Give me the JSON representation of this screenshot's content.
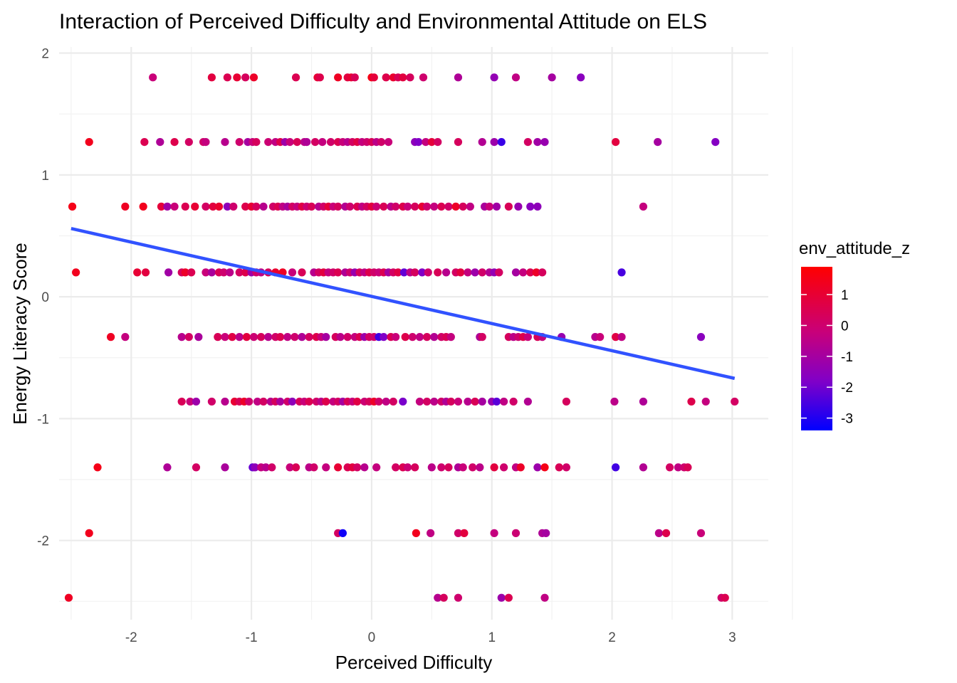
{
  "chart_data": {
    "type": "scatter",
    "title": "Interaction of Perceived Difficulty and Environmental Attitude on ELS",
    "xlabel": "Perceived Difficulty",
    "ylabel": "Energy Literacy Score",
    "xlim": [
      -2.6,
      3.3
    ],
    "ylim": [
      -2.65,
      2.05
    ],
    "x_ticks": [
      -2,
      -1,
      0,
      1,
      2,
      3
    ],
    "x_tick_labels": [
      "-2",
      "-1",
      "0",
      "1",
      "2",
      "3"
    ],
    "y_ticks": [
      -2,
      -1,
      0,
      1,
      2
    ],
    "y_tick_labels": [
      "-2",
      "-1",
      "0",
      "1",
      "2"
    ],
    "grid": true,
    "legend": {
      "title": "env_attitude_z",
      "placement": "right",
      "range": [
        -3.4,
        1.9
      ],
      "ticks": [
        1,
        0,
        -1,
        -2,
        -3
      ],
      "tick_labels": [
        "1",
        "0",
        "-1",
        "-2",
        "-3"
      ],
      "color_low": "#0000FF",
      "color_high": "#FF0000"
    },
    "trend_line": {
      "x": [
        -2.5,
        3.02
      ],
      "y": [
        0.56,
        -0.67
      ],
      "color": "#3152FF"
    },
    "rows": [
      {
        "y": 1.8,
        "x": [
          -1.82,
          -1.33,
          -1.2,
          -1.12,
          -1.05,
          -0.98,
          -0.63,
          -0.45,
          -0.43,
          -0.28,
          -0.2,
          -0.17,
          -0.14,
          0.0,
          0.02,
          0.12,
          0.18,
          0.22,
          0.26,
          0.32,
          0.43,
          0.72,
          1.02,
          1.2,
          1.5,
          1.74
        ],
        "c": [
          -0.2,
          0.8,
          0.5,
          1.0,
          0.3,
          1.2,
          0.5,
          1.0,
          0.6,
          1.3,
          0.8,
          1.0,
          0.4,
          1.5,
          0.9,
          0.6,
          1.1,
          0.4,
          0.8,
          0.3,
          0.0,
          -0.8,
          -1.4,
          -0.4,
          -1.0,
          -1.6
        ]
      },
      {
        "y": 1.27,
        "x": [
          -2.35,
          -1.89,
          -1.76,
          -1.64,
          -1.52,
          -1.4,
          -1.38,
          -1.22,
          -1.1,
          -1.03,
          -0.99,
          -0.96,
          -0.86,
          -0.8,
          -0.76,
          -0.72,
          -0.68,
          -0.62,
          -0.56,
          -0.54,
          -0.47,
          -0.41,
          -0.34,
          -0.28,
          -0.24,
          -0.2,
          -0.16,
          -0.12,
          -0.08,
          -0.04,
          0.0,
          0.04,
          0.08,
          0.14,
          0.36,
          0.39,
          0.45,
          0.5,
          0.55,
          0.72,
          0.92,
          1.02,
          1.08,
          1.3,
          1.38,
          1.44,
          2.03,
          2.38,
          2.86
        ],
        "c": [
          1.4,
          0.5,
          -0.8,
          0.6,
          0.2,
          0.1,
          -0.3,
          -0.6,
          0.0,
          -1.0,
          -0.2,
          0.3,
          -0.1,
          -0.4,
          0.6,
          -1.2,
          -0.2,
          0.4,
          -0.5,
          -0.8,
          0.2,
          -0.3,
          0.1,
          0.5,
          -0.2,
          -0.6,
          0.2,
          0.7,
          -0.3,
          0.0,
          0.4,
          -0.5,
          0.1,
          -0.2,
          -1.5,
          -1.8,
          -0.3,
          0.9,
          0.2,
          0.3,
          -0.7,
          -1.2,
          -2.7,
          0.2,
          -1.1,
          -1.3,
          0.8,
          -1.0,
          -1.7
        ]
      },
      {
        "y": 0.74,
        "x": [
          -2.49,
          -2.05,
          -1.9,
          -1.75,
          -1.7,
          -1.64,
          -1.55,
          -1.47,
          -1.38,
          -1.32,
          -1.27,
          -1.2,
          -1.15,
          -1.05,
          -1.0,
          -0.96,
          -0.9,
          -0.82,
          -0.78,
          -0.74,
          -0.7,
          -0.66,
          -0.62,
          -0.58,
          -0.54,
          -0.5,
          -0.44,
          -0.4,
          -0.36,
          -0.32,
          -0.28,
          -0.22,
          -0.18,
          -0.12,
          -0.08,
          -0.04,
          0.0,
          0.04,
          0.1,
          0.16,
          0.2,
          0.26,
          0.3,
          0.36,
          0.42,
          0.46,
          0.52,
          0.58,
          0.64,
          0.7,
          0.76,
          0.82,
          0.94,
          0.98,
          1.04,
          1.14,
          1.22,
          1.32,
          1.38,
          2.26
        ],
        "c": [
          1.5,
          1.3,
          1.4,
          0.9,
          -1.1,
          -0.2,
          0.5,
          1.0,
          0.2,
          0.8,
          1.1,
          -1.5,
          0.0,
          0.6,
          1.0,
          0.3,
          -0.6,
          0.1,
          0.5,
          -0.4,
          -0.9,
          0.2,
          -0.3,
          0.7,
          -0.1,
          0.4,
          -0.6,
          0.1,
          0.9,
          -0.2,
          0.3,
          -0.7,
          0.0,
          0.5,
          -0.4,
          0.2,
          0.8,
          -0.1,
          0.4,
          -0.5,
          0.1,
          0.6,
          -0.2,
          0.3,
          1.0,
          0.0,
          -0.3,
          0.5,
          0.1,
          1.2,
          0.3,
          -0.4,
          -0.9,
          -0.2,
          -1.1,
          0.4,
          -1.3,
          -1.6,
          -1.5,
          -0.3
        ]
      },
      {
        "y": 0.2,
        "x": [
          -2.46,
          -1.95,
          -1.88,
          -1.69,
          -1.58,
          -1.55,
          -1.5,
          -1.38,
          -1.33,
          -1.27,
          -1.23,
          -1.18,
          -1.1,
          -1.05,
          -1.0,
          -0.96,
          -0.92,
          -0.86,
          -0.8,
          -0.74,
          -0.66,
          -0.58,
          -0.48,
          -0.44,
          -0.4,
          -0.36,
          -0.32,
          -0.28,
          -0.22,
          -0.18,
          -0.14,
          -0.1,
          -0.06,
          -0.02,
          0.02,
          0.06,
          0.1,
          0.14,
          0.18,
          0.22,
          0.27,
          0.32,
          0.36,
          0.42,
          0.47,
          0.55,
          0.62,
          0.7,
          0.74,
          0.8,
          0.86,
          0.92,
          0.98,
          1.02,
          1.06,
          1.2,
          1.26,
          1.32,
          1.37,
          1.42,
          2.08
        ],
        "c": [
          1.4,
          1.0,
          0.8,
          -1.1,
          0.3,
          1.2,
          0.5,
          -0.2,
          -0.9,
          0.4,
          0.0,
          -0.5,
          0.2,
          0.6,
          -1.2,
          0.1,
          -0.4,
          0.3,
          1.1,
          1.3,
          -0.2,
          0.4,
          -0.6,
          0.2,
          0.8,
          -0.3,
          0.1,
          0.5,
          -0.8,
          0.0,
          -1.3,
          0.3,
          -0.4,
          0.6,
          0.1,
          -0.2,
          0.5,
          -1.0,
          0.2,
          0.7,
          -2.2,
          -0.5,
          0.3,
          -1.8,
          0.0,
          0.4,
          -0.6,
          0.2,
          0.8,
          -0.3,
          -1.2,
          0.1,
          -0.7,
          -1.4,
          0.2,
          -1.0,
          -0.3,
          0.5,
          1.2,
          0.3,
          -2.5
        ]
      },
      {
        "y": -0.33,
        "x": [
          -2.17,
          -2.05,
          -1.58,
          -1.52,
          -1.44,
          -1.28,
          -1.22,
          -1.16,
          -1.1,
          -1.04,
          -0.98,
          -0.92,
          -0.86,
          -0.8,
          -0.76,
          -0.7,
          -0.64,
          -0.58,
          -0.52,
          -0.46,
          -0.42,
          -0.38,
          -0.3,
          -0.26,
          -0.2,
          -0.14,
          -0.1,
          -0.06,
          -0.02,
          0.02,
          0.06,
          0.1,
          0.16,
          0.2,
          0.28,
          0.34,
          0.4,
          0.46,
          0.52,
          0.58,
          0.62,
          0.66,
          0.9,
          0.92,
          1.14,
          1.18,
          1.22,
          1.26,
          1.3,
          1.38,
          1.42,
          1.58,
          1.86,
          1.9,
          2.03,
          2.08,
          2.74
        ],
        "c": [
          1.3,
          -0.3,
          -0.6,
          0.2,
          -0.9,
          0.4,
          -0.2,
          0.7,
          -0.5,
          0.8,
          -0.1,
          0.3,
          -0.6,
          0.1,
          0.5,
          -0.4,
          0.0,
          -0.8,
          0.2,
          0.6,
          -0.2,
          -1.0,
          0.3,
          -0.5,
          0.1,
          -0.3,
          0.5,
          -1.2,
          0.2,
          0.0,
          -2.6,
          -1.8,
          0.4,
          -0.2,
          0.6,
          0.0,
          -0.4,
          0.3,
          -0.7,
          0.1,
          0.4,
          -0.3,
          -0.8,
          0.2,
          0.3,
          -0.5,
          0.0,
          0.6,
          -0.2,
          0.4,
          -0.3,
          -1.3,
          -0.6,
          -0.2,
          0.7,
          -0.4,
          -1.6
        ]
      },
      {
        "y": -0.86,
        "x": [
          -1.58,
          -1.51,
          -1.46,
          -1.33,
          -1.22,
          -1.14,
          -1.1,
          -1.06,
          -1.02,
          -0.95,
          -0.9,
          -0.84,
          -0.8,
          -0.76,
          -0.7,
          -0.66,
          -0.6,
          -0.56,
          -0.52,
          -0.46,
          -0.42,
          -0.38,
          -0.32,
          -0.28,
          -0.24,
          -0.2,
          -0.16,
          -0.12,
          -0.06,
          -0.02,
          0.02,
          0.06,
          0.12,
          0.18,
          0.26,
          0.4,
          0.46,
          0.52,
          0.58,
          0.62,
          0.66,
          0.72,
          0.8,
          0.86,
          0.92,
          1.0,
          1.04,
          1.1,
          1.18,
          1.3,
          1.62,
          2.02,
          2.26,
          2.66,
          2.78,
          3.02
        ],
        "c": [
          0.4,
          -0.2,
          -1.2,
          0.1,
          -0.6,
          1.0,
          0.4,
          1.2,
          0.0,
          -0.4,
          0.2,
          -0.6,
          0.3,
          -0.9,
          0.1,
          -1.5,
          0.3,
          -0.2,
          0.5,
          0.1,
          -0.5,
          0.6,
          -0.3,
          0.2,
          -1.0,
          0.4,
          -0.2,
          0.7,
          -0.1,
          0.3,
          1.2,
          0.1,
          -0.4,
          0.2,
          -1.9,
          -0.3,
          0.2,
          -0.5,
          0.1,
          -0.8,
          0.3,
          -0.2,
          -0.6,
          0.4,
          -1.0,
          -1.3,
          -2.3,
          -0.4,
          0.1,
          -0.7,
          0.3,
          -0.5,
          -0.8,
          0.6,
          -0.3,
          0.2
        ]
      },
      {
        "y": -1.4,
        "x": [
          -2.28,
          -1.7,
          -1.46,
          -1.22,
          -0.99,
          -0.97,
          -0.92,
          -0.88,
          -0.83,
          -0.68,
          -0.63,
          -0.52,
          -0.48,
          -0.38,
          -0.28,
          -0.2,
          -0.16,
          -0.12,
          -0.06,
          0.04,
          0.2,
          0.26,
          0.3,
          0.36,
          0.5,
          0.58,
          0.64,
          0.72,
          0.76,
          0.84,
          0.9,
          1.02,
          1.1,
          1.2,
          1.24,
          1.38,
          1.44,
          1.56,
          1.62,
          2.03,
          2.26,
          2.48,
          2.55,
          2.6,
          2.63
        ],
        "c": [
          1.5,
          -0.8,
          0.2,
          -0.9,
          -2.1,
          -1.5,
          -0.3,
          -0.6,
          0.1,
          -0.2,
          0.4,
          -0.5,
          0.1,
          -0.3,
          1.0,
          0.5,
          0.8,
          0.2,
          -0.6,
          -0.3,
          0.2,
          0.5,
          -0.1,
          0.3,
          -0.5,
          0.0,
          0.3,
          -0.8,
          -0.2,
          0.1,
          -0.5,
          0.8,
          0.0,
          -0.4,
          1.2,
          -1.2,
          1.5,
          0.4,
          0.1,
          -2.6,
          -0.7,
          0.2,
          -0.4,
          0.0,
          0.4
        ]
      },
      {
        "y": -1.94,
        "x": [
          -2.35,
          -0.28,
          -0.24,
          0.37,
          0.49,
          0.72,
          0.77,
          1.02,
          1.2,
          1.42,
          1.45,
          2.39,
          2.45,
          2.74
        ],
        "c": [
          1.4,
          0.2,
          -3.2,
          1.4,
          -0.4,
          0.1,
          0.8,
          -0.3,
          -0.1,
          -0.8,
          -1.0,
          -0.5,
          0.6,
          -0.2
        ]
      },
      {
        "y": -2.47,
        "x": [
          -2.52,
          0.55,
          0.6,
          0.72,
          1.08,
          1.14,
          1.44,
          2.91,
          2.94
        ],
        "c": [
          1.3,
          -0.6,
          0.3,
          0.0,
          -1.2,
          0.5,
          -0.4,
          0.1,
          0.5
        ]
      }
    ]
  }
}
